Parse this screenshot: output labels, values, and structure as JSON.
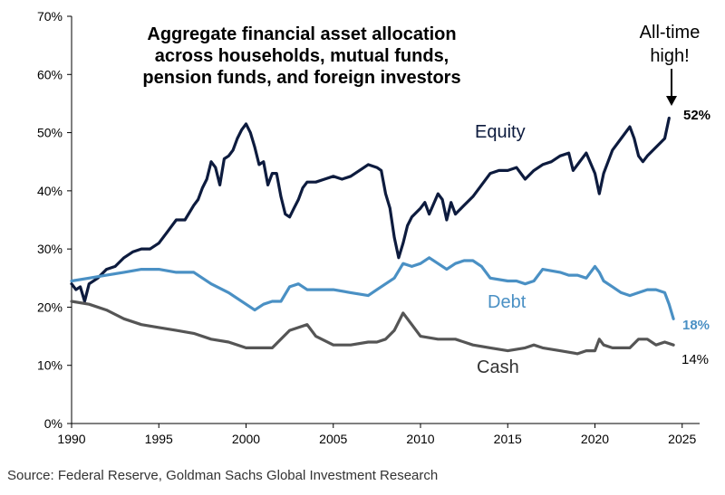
{
  "chart_data": {
    "type": "line",
    "title": "Aggregate financial asset allocation across households, mutual funds, pension funds, and foreign investors",
    "title_lines": [
      "Aggregate financial asset allocation",
      "across households, mutual funds,",
      "pension funds, and foreign investors"
    ],
    "xlabel": "",
    "ylabel": "",
    "xlim": [
      1990,
      2026
    ],
    "ylim": [
      0,
      70
    ],
    "x_ticks": [
      1990,
      1995,
      2000,
      2005,
      2010,
      2015,
      2020,
      2025
    ],
    "y_ticks": [
      0,
      10,
      20,
      30,
      40,
      50,
      60,
      70
    ],
    "y_tick_labels": [
      "0%",
      "10%",
      "20%",
      "30%",
      "40%",
      "50%",
      "60%",
      "70%"
    ],
    "grid": false,
    "legend": "inline",
    "series": [
      {
        "name": "Equity",
        "color": "#0d1b3e",
        "end_label": "52%",
        "x": [
          1990,
          1990.25,
          1990.5,
          1990.75,
          1991,
          1991.5,
          1992,
          1992.5,
          1993,
          1993.5,
          1994,
          1994.5,
          1995,
          1995.5,
          1996,
          1996.5,
          1997,
          1997.25,
          1997.5,
          1997.75,
          1998,
          1998.25,
          1998.5,
          1998.75,
          1999,
          1999.25,
          1999.5,
          1999.75,
          2000,
          2000.25,
          2000.5,
          2000.75,
          2001,
          2001.25,
          2001.5,
          2001.75,
          2002,
          2002.25,
          2002.5,
          2002.75,
          2003,
          2003.25,
          2003.5,
          2004,
          2004.5,
          2005,
          2005.5,
          2006,
          2006.5,
          2007,
          2007.5,
          2007.75,
          2008,
          2008.25,
          2008.5,
          2008.75,
          2009,
          2009.25,
          2009.5,
          2010,
          2010.25,
          2010.5,
          2011,
          2011.25,
          2011.5,
          2011.75,
          2012,
          2012.5,
          2013,
          2013.5,
          2014,
          2014.5,
          2015,
          2015.5,
          2016,
          2016.5,
          2017,
          2017.5,
          2018,
          2018.5,
          2018.75,
          2019,
          2019.5,
          2020,
          2020.25,
          2020.5,
          2021,
          2021.5,
          2022,
          2022.25,
          2022.5,
          2022.75,
          2023,
          2023.5,
          2024,
          2024.25
        ],
        "values": [
          24,
          23,
          23.5,
          21,
          24,
          25,
          26.5,
          27,
          28.5,
          29.5,
          30,
          30,
          31,
          33,
          35,
          35,
          37.5,
          38.5,
          40.5,
          42,
          45,
          44,
          41,
          45.5,
          46,
          47,
          49,
          50.5,
          51.5,
          50,
          47.5,
          44.5,
          45,
          41,
          43,
          43,
          39,
          36,
          35.5,
          37,
          38.5,
          40.5,
          41.5,
          41.5,
          42,
          42.5,
          42,
          42.5,
          43.5,
          44.5,
          44,
          43.5,
          39.5,
          37,
          32,
          28.5,
          31,
          34,
          35.5,
          37,
          38,
          36,
          39.5,
          38.5,
          35,
          38,
          36,
          37.5,
          39,
          41,
          43,
          43.5,
          43.5,
          44,
          42,
          43.5,
          44.5,
          45,
          46,
          46.5,
          43.5,
          44.5,
          46.5,
          43,
          39.5,
          43,
          47,
          49,
          51,
          49,
          46,
          45,
          46,
          47.5,
          49,
          52.5
        ]
      },
      {
        "name": "Debt",
        "color": "#4a90c4",
        "end_label": "18%",
        "x": [
          1990,
          1991,
          1992,
          1993,
          1994,
          1995,
          1996,
          1997,
          1998,
          1999,
          2000,
          2000.5,
          2001,
          2001.5,
          2002,
          2002.5,
          2003,
          2003.5,
          2004,
          2005,
          2006,
          2007,
          2007.5,
          2008,
          2008.5,
          2009,
          2009.5,
          2010,
          2010.5,
          2011,
          2011.5,
          2012,
          2012.5,
          2013,
          2013.5,
          2014,
          2015,
          2015.5,
          2016,
          2016.5,
          2017,
          2018,
          2018.5,
          2019,
          2019.5,
          2020,
          2020.25,
          2020.5,
          2021,
          2021.5,
          2022,
          2022.5,
          2023,
          2023.5,
          2024,
          2024.25,
          2024.5
        ],
        "values": [
          24.5,
          25,
          25.5,
          26,
          26.5,
          26.5,
          26,
          26,
          24,
          22.5,
          20.5,
          19.5,
          20.5,
          21,
          21,
          23.5,
          24,
          23,
          23,
          23,
          22.5,
          22,
          23,
          24,
          25,
          27.5,
          27,
          27.5,
          28.5,
          27.5,
          26.5,
          27.5,
          28,
          28,
          27,
          25,
          24.5,
          24.5,
          24,
          24.5,
          26.5,
          26,
          25.5,
          25.5,
          25,
          27,
          26,
          24.5,
          23.5,
          22.5,
          22,
          22.5,
          23,
          23,
          22.5,
          20.5,
          18
        ]
      },
      {
        "name": "Cash",
        "color": "#555555",
        "end_label": "14%",
        "x": [
          1990,
          1991,
          1992,
          1993,
          1994,
          1995,
          1996,
          1997,
          1998,
          1999,
          2000,
          2001,
          2001.5,
          2002,
          2002.5,
          2003,
          2003.5,
          2004,
          2005,
          2006,
          2007,
          2007.5,
          2008,
          2008.5,
          2009,
          2009.5,
          2010,
          2011,
          2012,
          2013,
          2014,
          2015,
          2016,
          2016.5,
          2017,
          2018,
          2019,
          2019.5,
          2020,
          2020.25,
          2020.5,
          2021,
          2021.5,
          2022,
          2022.5,
          2023,
          2023.5,
          2024,
          2024.5
        ],
        "values": [
          21,
          20.5,
          19.5,
          18,
          17,
          16.5,
          16,
          15.5,
          14.5,
          14,
          13,
          13,
          13,
          14.5,
          16,
          16.5,
          17,
          15,
          13.5,
          13.5,
          14,
          14,
          14.5,
          16,
          19,
          17,
          15,
          14.5,
          14.5,
          13.5,
          13,
          12.5,
          13,
          13.5,
          13,
          12.5,
          12,
          12.5,
          12.5,
          14.5,
          13.5,
          13,
          13,
          13,
          14.5,
          14.5,
          13.5,
          14,
          13.5
        ]
      }
    ]
  },
  "annotations": {
    "callout_line1": "All-time",
    "callout_line2": "high!",
    "equity_label": "Equity",
    "debt_label": "Debt",
    "cash_label": "Cash"
  },
  "source": "Source: Federal Reserve, Goldman Sachs Global Investment Research"
}
